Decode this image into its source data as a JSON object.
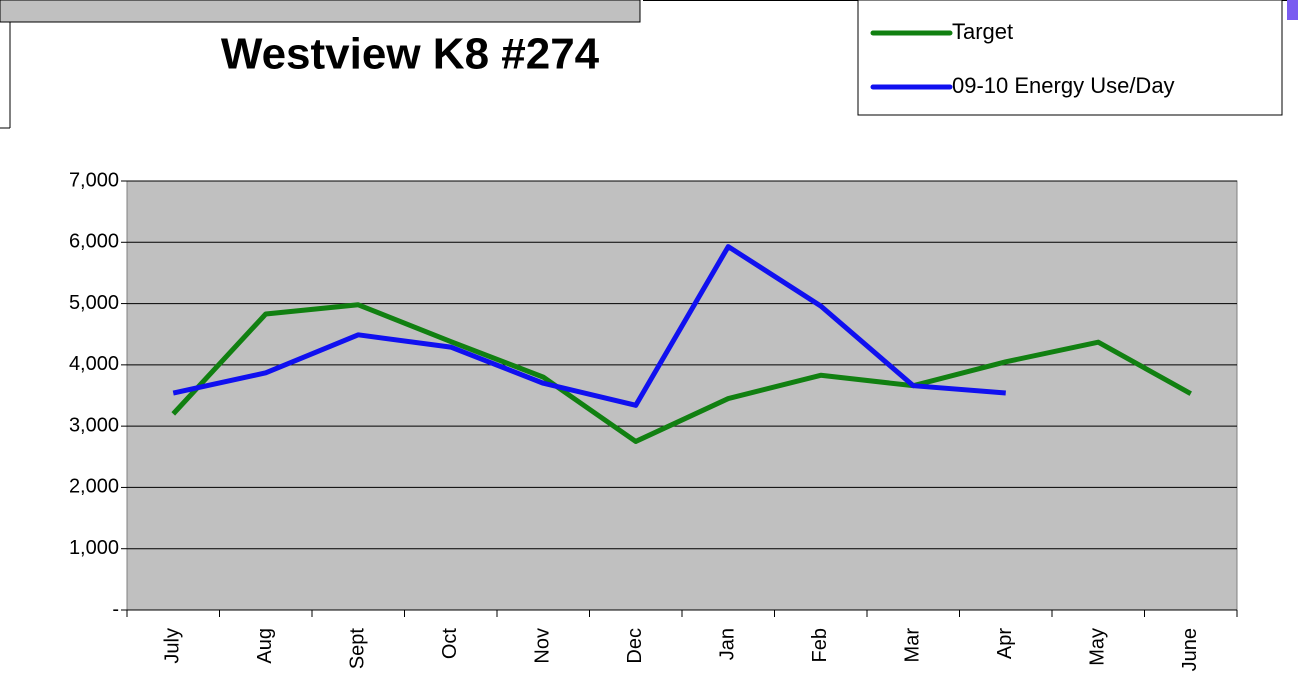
{
  "chart_data": {
    "type": "line",
    "title": "Westview K8 #274",
    "categories": [
      "July",
      "Aug",
      "Sept",
      "Oct",
      "Nov",
      "Dec",
      "Jan",
      "Feb",
      "Mar",
      "Apr",
      "May",
      "June"
    ],
    "series": [
      {
        "name": "Target",
        "color": "#118011",
        "values": [
          3200,
          4830,
          4980,
          4380,
          3800,
          2750,
          3450,
          3830,
          3660,
          4050,
          4370,
          3530
        ]
      },
      {
        "name": "09-10 Energy Use/Day",
        "color": "#1010f0",
        "values": [
          3540,
          3870,
          4490,
          4290,
          3700,
          3340,
          5930,
          4960,
          3660,
          3540,
          null,
          null
        ]
      }
    ],
    "ylim": [
      0,
      7000
    ],
    "yticks": [
      {
        "value": 0,
        "label": "-"
      },
      {
        "value": 1000,
        "label": "1,000"
      },
      {
        "value": 2000,
        "label": "2,000"
      },
      {
        "value": 3000,
        "label": "3,000"
      },
      {
        "value": 4000,
        "label": "4,000"
      },
      {
        "value": 5000,
        "label": "5,000"
      },
      {
        "value": 6000,
        "label": "6,000"
      },
      {
        "value": 7000,
        "label": "7,000"
      }
    ],
    "grid": true,
    "legend": "top-right"
  }
}
